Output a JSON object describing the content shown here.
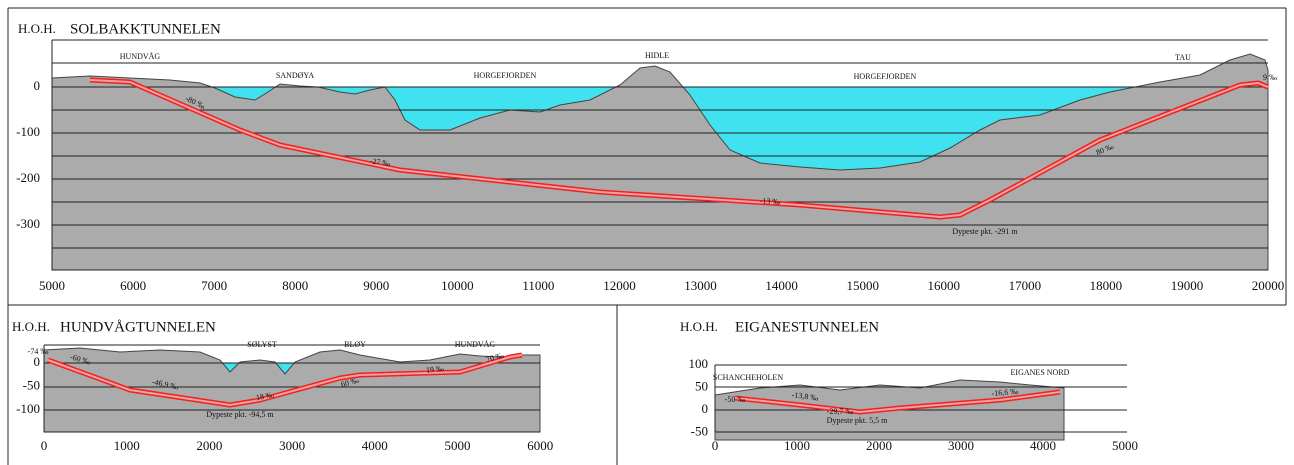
{
  "panels": [
    {
      "label": "H.O.H.",
      "title": "SOLBAKKTUNNELEN",
      "x_ticks": [
        "5000",
        "6000",
        "7000",
        "8000",
        "9000",
        "10000",
        "11000",
        "12000",
        "13000",
        "14000",
        "15000",
        "16000",
        "17000",
        "18000",
        "19000",
        "20000"
      ],
      "y_ticks": [
        "0",
        "-100",
        "-200",
        "-300"
      ],
      "places": [
        "HUNDVÅG",
        "SANDØYA",
        "HORGEFJORDEN",
        "HIDLE",
        "HORGEFJORDEN",
        "TAU"
      ],
      "gradients": [
        "-80 ‰",
        "-27 ‰",
        "-13 ‰",
        "80 ‰",
        "9 ‰"
      ],
      "annotations": [
        "Dypeste pkt. -291 m"
      ]
    },
    {
      "label": "H.O.H.",
      "title": "HUNDVÅGTUNNELEN",
      "x_ticks": [
        "0",
        "1000",
        "2000",
        "3000",
        "4000",
        "5000",
        "6000"
      ],
      "y_ticks": [
        "0",
        "-50",
        "-100"
      ],
      "places": [
        "SØLYST",
        "BLØY",
        "HUNDVÅG"
      ],
      "gradients": [
        "-74 ‰",
        "-60 ‰",
        "-46,9 ‰",
        "18 ‰",
        "60 ‰",
        "19 ‰",
        "70 ‰"
      ],
      "annotations": [
        "Dypeste pkt. -94,5 m"
      ]
    },
    {
      "label": "H.O.H.",
      "title": "EIGANESTUNNELEN",
      "x_ticks": [
        "0",
        "1000",
        "2000",
        "3000",
        "4000",
        "5000"
      ],
      "y_ticks": [
        "100",
        "50",
        "0",
        "-50"
      ],
      "places": [
        "SCHANCHEHOLEN",
        "EIGANES NORD"
      ],
      "gradients": [
        "-50 ‰",
        "-13,8 ‰",
        "-29,7 ‰",
        "-16,6 ‰"
      ],
      "annotations": [
        "Dypeste pkt. 5,5 m"
      ]
    }
  ]
}
